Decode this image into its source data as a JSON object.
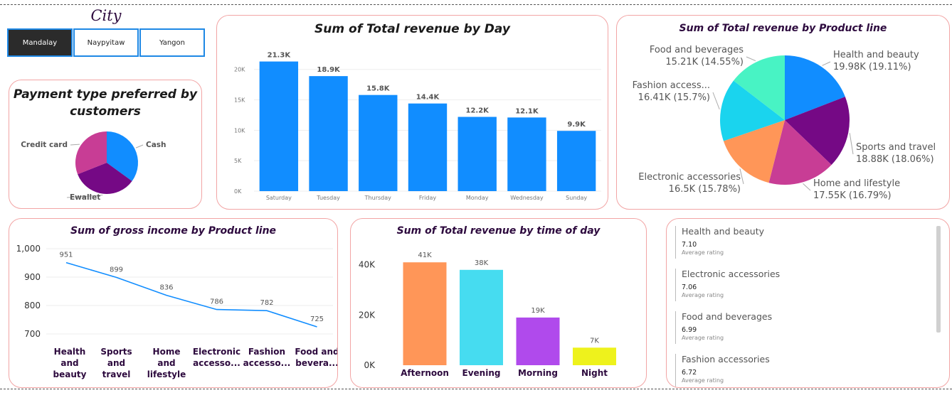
{
  "slicer": {
    "title": "City",
    "options": [
      {
        "label": "Mandalay",
        "active": true
      },
      {
        "label": "Naypyitaw",
        "active": false
      },
      {
        "label": "Yangon",
        "active": false
      }
    ]
  },
  "payment_chart": {
    "title": "Payment type preferred by customers",
    "title_line1": "Payment type preferred by",
    "title_line2": "customers",
    "labels": [
      "Cash",
      "Ewallet",
      "Credit card"
    ]
  },
  "revenue_by_day": {
    "title": "Sum of Total revenue by Day"
  },
  "revenue_by_product": {
    "title": "Sum of Total revenue by Product line"
  },
  "gross_income": {
    "title": "Sum of gross income by Product line"
  },
  "time_of_day": {
    "title": "Sum of Total revenue by time of day"
  },
  "ratings": {
    "items": [
      {
        "name": "Health and beauty",
        "value": "7.10",
        "sub": "Average rating"
      },
      {
        "name": "Electronic accessories",
        "value": "7.06",
        "sub": "Average rating"
      },
      {
        "name": "Food and beverages",
        "value": "6.99",
        "sub": "Average rating"
      },
      {
        "name": "Fashion accessories",
        "value": "6.72",
        "sub": "Average rating"
      }
    ]
  },
  "chart_data": [
    {
      "type": "pie",
      "title": "Payment type preferred by customers",
      "categories": [
        "Cash",
        "Ewallet",
        "Credit card"
      ],
      "values": [
        35,
        34,
        31
      ],
      "colors": [
        "#118DFF",
        "#750985",
        "#C83D95"
      ]
    },
    {
      "type": "bar",
      "title": "Sum of Total revenue by Day",
      "categories": [
        "Saturday",
        "Tuesday",
        "Thursday",
        "Friday",
        "Monday",
        "Wednesday",
        "Sunday"
      ],
      "values": [
        21300,
        18900,
        15800,
        14400,
        12200,
        12100,
        9900
      ],
      "data_labels": [
        "21.3K",
        "18.9K",
        "15.8K",
        "14.4K",
        "12.2K",
        "12.1K",
        "9.9K"
      ],
      "yticks": [
        "0K",
        "5K",
        "10K",
        "15K",
        "20K"
      ],
      "ylim": [
        0,
        23000
      ],
      "color": "#118DFF"
    },
    {
      "type": "pie",
      "title": "Sum of Total revenue by Product line",
      "categories": [
        "Health and beauty",
        "Sports and travel",
        "Home and lifestyle",
        "Electronic accessories",
        "Fashion accessories",
        "Food and beverages"
      ],
      "values": [
        19.98,
        18.88,
        17.55,
        16.5,
        16.41,
        15.21
      ],
      "data_labels": [
        "19.98K (19.11%)",
        "18.88K (18.06%)",
        "17.55K (16.79%)",
        "16.5K (15.78%)",
        "16.41K (15.7%)",
        "15.21K (14.55%)"
      ],
      "label_names": [
        "Health and beauty",
        "Sports and travel",
        "Home and lifestyle",
        "Electronic accessories",
        "Fashion access...",
        "Food and beverages"
      ],
      "colors": [
        "#118DFF",
        "#750985",
        "#C83D95",
        "#FF9658",
        "#1AD4EE",
        "#48F3C4"
      ]
    },
    {
      "type": "line",
      "title": "Sum of gross income by Product line",
      "categories": [
        [
          "Health",
          "and",
          "beauty"
        ],
        [
          "Sports",
          "and",
          "travel"
        ],
        [
          "Home",
          "and",
          "lifestyle"
        ],
        [
          "Electronic",
          "accesso..."
        ],
        [
          "Fashion",
          "accesso..."
        ],
        [
          "Food and",
          "bevera..."
        ]
      ],
      "values": [
        951,
        899,
        836,
        786,
        782,
        725
      ],
      "yticks": [
        "700",
        "800",
        "900",
        "1,000"
      ],
      "ylim": [
        680,
        1000
      ],
      "color": "#118DFF"
    },
    {
      "type": "bar",
      "title": "Sum of Total revenue by time of day",
      "categories": [
        "Afternoon",
        "Evening",
        "Morning",
        "Night"
      ],
      "values": [
        41000,
        38000,
        19000,
        7000
      ],
      "data_labels": [
        "41K",
        "38K",
        "19K",
        "7K"
      ],
      "yticks": [
        "0K",
        "20K",
        "40K"
      ],
      "ylim": [
        0,
        47000
      ],
      "colors": [
        "#FF9658",
        "#46DCF0",
        "#B04AEC",
        "#EEF21C"
      ]
    }
  ]
}
